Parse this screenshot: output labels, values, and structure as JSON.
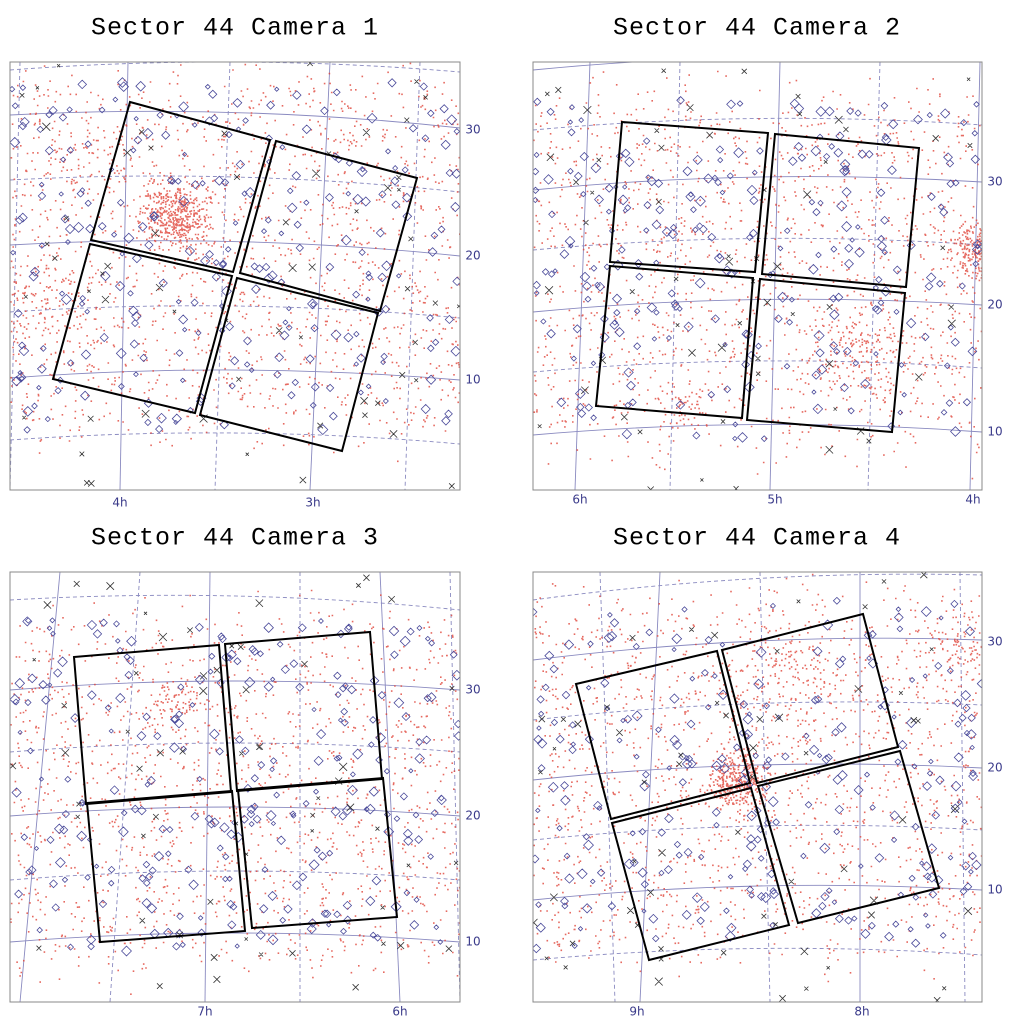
{
  "panels": [
    {
      "title": "Sector 44 Camera 1",
      "ra_labels": [
        "4h",
        "3h"
      ],
      "dec_labels": [
        30,
        20,
        10
      ]
    },
    {
      "title": "Sector 44 Camera 2",
      "ra_labels": [
        "6h",
        "5h",
        "4h"
      ],
      "dec_labels": [
        30,
        20,
        10
      ]
    },
    {
      "title": "Sector 44 Camera 3",
      "ra_labels": [
        "7h",
        "6h"
      ],
      "dec_labels": [
        30,
        20,
        10
      ]
    },
    {
      "title": "Sector 44 Camera 4",
      "ra_labels": [
        "9h",
        "8h"
      ],
      "dec_labels": [
        30,
        20,
        10
      ]
    }
  ]
}
